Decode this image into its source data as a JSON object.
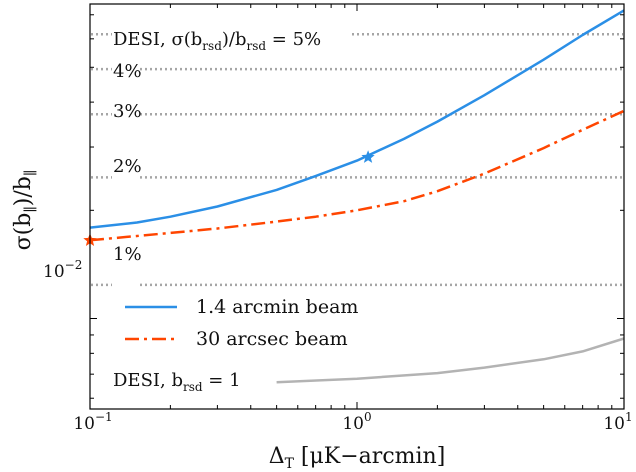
{
  "chart_data": {
    "type": "line",
    "title": "",
    "xlabel": "ΔT [μK−arcmin]",
    "ylabel": "σ(b∥)/b∥",
    "xscale": "log",
    "yscale": "log",
    "xlim": [
      0.1,
      10
    ],
    "ylim": [
      0.0056,
      0.075
    ],
    "x_ticks": [
      {
        "value": 0.1,
        "label": "10⁻¹"
      },
      {
        "value": 1,
        "label": "10⁰"
      },
      {
        "value": 10,
        "label": "10¹"
      }
    ],
    "y_ticks": [
      {
        "value": 0.01,
        "label": "10⁻²"
      }
    ],
    "legend": {
      "placement": "lower-left",
      "entries": [
        {
          "label": "1.4 arcmin beam",
          "series": 0
        },
        {
          "label": "30 arcsec beam",
          "series": 1
        }
      ]
    },
    "series": [
      {
        "name": "1.4 arcmin beam",
        "color": "#2b8fe6",
        "style": "solid",
        "x": [
          0.1,
          0.15,
          0.2,
          0.3,
          0.5,
          0.7,
          1.0,
          1.5,
          2.0,
          3.0,
          5.0,
          7.0,
          10.0
        ],
        "y": [
          0.0179,
          0.0185,
          0.0192,
          0.0205,
          0.0228,
          0.0249,
          0.0275,
          0.0316,
          0.0353,
          0.0418,
          0.0525,
          0.0615,
          0.072
        ]
      },
      {
        "name": "30 arcsec beam",
        "color": "#ff4500",
        "style": "dashdot",
        "x": [
          0.1,
          0.2,
          0.3,
          0.5,
          0.7,
          1.0,
          1.5,
          2.0,
          3.0,
          5.0,
          7.0,
          10.0
        ],
        "y": [
          0.0165,
          0.0173,
          0.0178,
          0.0186,
          0.0192,
          0.02,
          0.0212,
          0.0226,
          0.0253,
          0.0298,
          0.0335,
          0.0378
        ]
      },
      {
        "color": "#b3b3b3",
        "style": "solid",
        "x": [
          0.1,
          0.2,
          0.5,
          1.0,
          2.0,
          3.0,
          5.0,
          7.0,
          10.0
        ],
        "y": [
          0.00638,
          0.0065,
          0.00665,
          0.0068,
          0.00705,
          0.0073,
          0.0077,
          0.0081,
          0.0088
        ]
      }
    ],
    "markers": [
      {
        "series": 0,
        "x": 1.1,
        "y": 0.0281,
        "symbol": "star",
        "color": "#2b8fe6"
      },
      {
        "series": 1,
        "x": 0.1,
        "y": 0.0165,
        "symbol": "star",
        "color": "#ff4500"
      }
    ],
    "reference_lines": [
      {
        "y": 0.0618,
        "label": "DESI, σ(brsd)/brsd = 5%",
        "color": "#a6a6a6",
        "style": "dotted"
      },
      {
        "y": 0.0494,
        "label": "4%",
        "color": "#a6a6a6",
        "style": "dotted"
      },
      {
        "y": 0.037,
        "label": "3%",
        "color": "#a6a6a6",
        "style": "dotted"
      },
      {
        "y": 0.0247,
        "label": "2%",
        "color": "#a6a6a6",
        "style": "dotted"
      },
      {
        "y": 0.0124,
        "label": "1%",
        "color": "#a6a6a6",
        "style": "dotted"
      }
    ],
    "annotations": [
      {
        "text": "DESI, brsd = 1"
      }
    ]
  }
}
